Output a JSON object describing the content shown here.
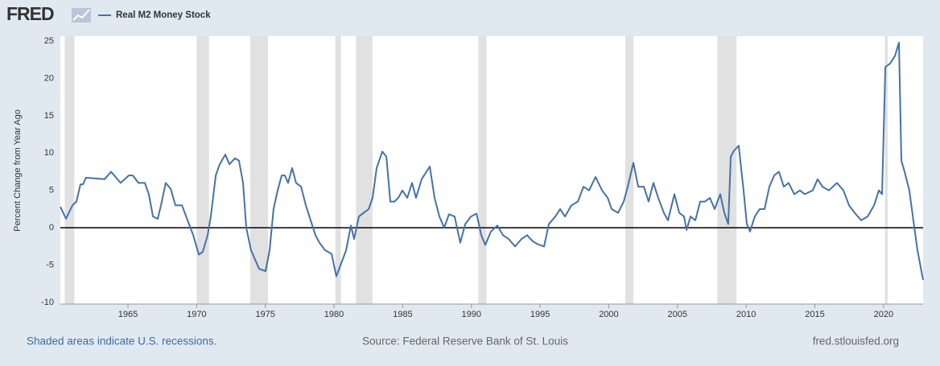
{
  "brand": "FRED",
  "footer": {
    "note": "Shaded areas indicate U.S. recessions.",
    "source": "Source: Federal Reserve Bank of St. Louis",
    "site": "fred.stlouisfed.org"
  },
  "chart_data": {
    "type": "line",
    "ylabel": "Percent Change from Year Ago",
    "x": [
      1960.08,
      1960.49,
      1960.96,
      1961.25,
      1961.54,
      1961.72,
      1961.95,
      1963.3,
      1963.77,
      1964.47,
      1965.06,
      1965.35,
      1965.76,
      1966.23,
      1966.52,
      1966.82,
      1967.17,
      1967.4,
      1967.75,
      1968.11,
      1968.46,
      1968.93,
      1969.34,
      1969.75,
      1970.16,
      1970.45,
      1970.8,
      1971.03,
      1971.39,
      1971.68,
      1972.09,
      1972.38,
      1972.79,
      1973.08,
      1973.38,
      1973.61,
      1973.96,
      1974.31,
      1974.55,
      1975.02,
      1975.31,
      1975.6,
      1975.9,
      1976.19,
      1976.42,
      1976.66,
      1976.95,
      1977.24,
      1977.6,
      1977.95,
      1978.3,
      1978.65,
      1978.94,
      1979.35,
      1979.82,
      1980.17,
      1980.58,
      1980.88,
      1981.23,
      1981.46,
      1981.81,
      1982.16,
      1982.52,
      1982.81,
      1983.1,
      1983.51,
      1983.81,
      1984.1,
      1984.39,
      1984.68,
      1984.98,
      1985.33,
      1985.68,
      1985.97,
      1986.38,
      1986.97,
      1987.32,
      1987.67,
      1988.02,
      1988.37,
      1988.78,
      1989.19,
      1989.55,
      1989.96,
      1990.37,
      1990.72,
      1991.01,
      1991.42,
      1991.89,
      1992.3,
      1992.71,
      1993.18,
      1993.65,
      1994.06,
      1994.47,
      1994.82,
      1995.29,
      1995.64,
      1996.11,
      1996.46,
      1996.81,
      1997.28,
      1997.75,
      1998.16,
      1998.57,
      1999.04,
      1999.51,
      1999.92,
      2000.21,
      2000.68,
      2001.09,
      2001.38,
      2001.79,
      2002.14,
      2002.55,
      2002.9,
      2003.25,
      2003.6,
      2004.01,
      2004.31,
      2004.78,
      2005.13,
      2005.48,
      2005.66,
      2005.95,
      2006.3,
      2006.65,
      2007.0,
      2007.36,
      2007.71,
      2008.12,
      2008.41,
      2008.7,
      2008.88,
      2009.11,
      2009.46,
      2009.81,
      2010.05,
      2010.28,
      2010.63,
      2010.98,
      2011.34,
      2011.69,
      2012.04,
      2012.39,
      2012.74,
      2013.09,
      2013.5,
      2013.91,
      2014.27,
      2014.85,
      2015.2,
      2015.55,
      2016.02,
      2016.61,
      2017.08,
      2017.49,
      2017.9,
      2018.37,
      2018.84,
      2019.31,
      2019.66,
      2019.89,
      2020.13,
      2020.48,
      2020.83,
      2021.12,
      2021.3,
      2021.53,
      2021.88,
      2022.17,
      2022.47,
      2022.88
    ],
    "series": [
      {
        "name": "Real M2 Money Stock",
        "color": "#4572a7",
        "values": [
          2.8,
          1.2,
          3.0,
          3.5,
          5.8,
          5.8,
          6.7,
          6.5,
          7.5,
          6.0,
          7.0,
          7.0,
          6.0,
          6.0,
          4.5,
          1.5,
          1.2,
          3.0,
          6.0,
          5.2,
          3.0,
          3.0,
          1.0,
          -1.0,
          -3.6,
          -3.2,
          -1.0,
          1.5,
          7.0,
          8.5,
          9.8,
          8.5,
          9.3,
          9.0,
          6.0,
          0.0,
          -3.0,
          -4.5,
          -5.5,
          -5.8,
          -3.0,
          2.5,
          5.0,
          7.0,
          7.0,
          6.0,
          8.0,
          6.0,
          5.5,
          3.0,
          1.0,
          -1.0,
          -2.0,
          -3.0,
          -3.5,
          -6.5,
          -4.5,
          -3.0,
          0.3,
          -1.5,
          1.5,
          2.0,
          2.5,
          4.0,
          8.0,
          10.2,
          9.5,
          3.5,
          3.5,
          4.0,
          5.0,
          4.0,
          6.0,
          4.0,
          6.5,
          8.2,
          4.0,
          1.5,
          0.0,
          1.8,
          1.5,
          -2.0,
          0.5,
          1.5,
          1.9,
          -1.0,
          -2.3,
          -0.5,
          0.3,
          -1.0,
          -1.5,
          -2.5,
          -1.5,
          -1.0,
          -1.8,
          -2.2,
          -2.5,
          0.5,
          1.5,
          2.5,
          1.5,
          3.0,
          3.5,
          5.5,
          5.0,
          6.8,
          5.0,
          4.0,
          2.5,
          2.0,
          3.5,
          5.5,
          8.7,
          5.5,
          5.5,
          3.5,
          6.0,
          4.0,
          2.0,
          1.0,
          4.5,
          2.0,
          1.5,
          -0.3,
          1.5,
          1.0,
          3.5,
          3.5,
          4.0,
          2.5,
          4.5,
          2.0,
          0.5,
          9.5,
          10.3,
          11.0,
          5.0,
          0.5,
          -0.5,
          1.5,
          2.5,
          2.5,
          5.5,
          7.0,
          7.5,
          5.5,
          6.0,
          4.5,
          5.0,
          4.5,
          5.0,
          6.5,
          5.5,
          5.0,
          6.0,
          5.0,
          3.0,
          2.0,
          1.0,
          1.5,
          3.0,
          5.0,
          4.5,
          21.5,
          22.0,
          23.0,
          24.8,
          9.0,
          7.5,
          5.0,
          1.0,
          -3.0,
          -7.0
        ]
      }
    ],
    "recessions": [
      [
        1960.4,
        1961.1
      ],
      [
        1970.0,
        1970.9
      ],
      [
        1973.9,
        1975.2
      ],
      [
        1980.1,
        1980.5
      ],
      [
        1981.6,
        1982.8
      ],
      [
        1990.5,
        1991.1
      ],
      [
        2001.2,
        2001.8
      ],
      [
        2007.9,
        2009.3
      ],
      [
        2020.1,
        2020.3
      ]
    ],
    "recession_color": "#e1e1e1",
    "xlim": [
      1960.08,
      2022.88
    ],
    "xticks": [
      1965,
      1970,
      1975,
      1980,
      1985,
      1990,
      1995,
      2000,
      2005,
      2010,
      2015,
      2020
    ],
    "ylim": [
      -10,
      25
    ],
    "yticks": [
      -10,
      -5,
      0,
      5,
      10,
      15,
      20,
      25
    ],
    "grid": false
  }
}
